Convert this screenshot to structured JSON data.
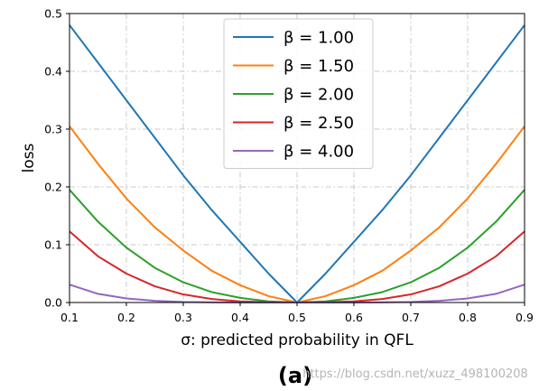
{
  "chart_data": {
    "type": "line",
    "title": "",
    "xlabel": "σ: predicted probability in QFL",
    "ylabel": "loss",
    "xlim": [
      0.1,
      0.9
    ],
    "ylim": [
      0.0,
      0.5
    ],
    "x_ticks": [
      "0.1",
      "0.2",
      "0.3",
      "0.4",
      "0.5",
      "0.6",
      "0.7",
      "0.8",
      "0.9"
    ],
    "y_ticks": [
      "0.0",
      "0.1",
      "0.2",
      "0.3",
      "0.4",
      "0.5"
    ],
    "grid": true,
    "legend_position": "top-center",
    "x": [
      0.1,
      0.15,
      0.2,
      0.25,
      0.3,
      0.35,
      0.4,
      0.45,
      0.5,
      0.55,
      0.6,
      0.65,
      0.7,
      0.75,
      0.8,
      0.85,
      0.9
    ],
    "series": [
      {
        "name": "β = 1.00",
        "color": "#1f77b4",
        "values": [
          0.48,
          0.415,
          0.35,
          0.285,
          0.22,
          0.16,
          0.105,
          0.05,
          0.0,
          0.05,
          0.105,
          0.16,
          0.22,
          0.285,
          0.35,
          0.415,
          0.48
        ]
      },
      {
        "name": "β = 1.50",
        "color": "#ff7f0e",
        "values": [
          0.305,
          0.24,
          0.18,
          0.13,
          0.09,
          0.055,
          0.03,
          0.011,
          0.0,
          0.011,
          0.03,
          0.055,
          0.09,
          0.13,
          0.18,
          0.24,
          0.305
        ]
      },
      {
        "name": "β = 2.00",
        "color": "#2ca02c",
        "values": [
          0.195,
          0.14,
          0.095,
          0.06,
          0.035,
          0.018,
          0.008,
          0.002,
          0.0,
          0.002,
          0.008,
          0.018,
          0.035,
          0.06,
          0.095,
          0.14,
          0.195
        ]
      },
      {
        "name": "β = 2.50",
        "color": "#d62728",
        "values": [
          0.123,
          0.08,
          0.05,
          0.028,
          0.014,
          0.006,
          0.002,
          0.0005,
          0.0,
          0.0005,
          0.002,
          0.006,
          0.014,
          0.028,
          0.05,
          0.08,
          0.123
        ]
      },
      {
        "name": "β = 4.00",
        "color": "#9467bd",
        "values": [
          0.031,
          0.015,
          0.007,
          0.003,
          0.001,
          0.0003,
          0.0001,
          0.0,
          0.0,
          0.0,
          0.0001,
          0.0003,
          0.001,
          0.003,
          0.007,
          0.015,
          0.031
        ]
      }
    ]
  },
  "caption": "(a)",
  "watermark": "https://blog.csdn.net/xuzz_498100208"
}
